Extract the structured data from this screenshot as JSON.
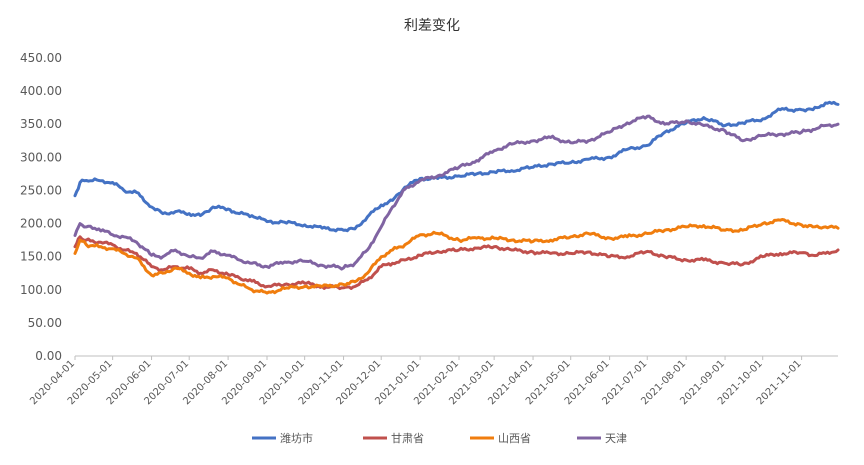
{
  "chart_data": {
    "type": "line",
    "title": "利差变化",
    "xlabel": "",
    "ylabel": "",
    "ylim": [
      0,
      450
    ],
    "yticks": [
      "0.00",
      "50.00",
      "100.00",
      "150.00",
      "200.00",
      "250.00",
      "300.00",
      "350.00",
      "400.00",
      "450.00"
    ],
    "x_range": [
      "2020-04-01",
      "2021-11-30"
    ],
    "x_ticks": [
      "2020-04-01",
      "2020-05-01",
      "2020-06-01",
      "2020-07-01",
      "2020-08-01",
      "2020-09-01",
      "2020-10-01",
      "2020-11-01",
      "2020-12-01",
      "2021-01-01",
      "2021-02-01",
      "2021-03-01",
      "2021-04-01",
      "2021-05-01",
      "2021-06-01",
      "2021-07-01",
      "2021-08-01",
      "2021-09-01",
      "2021-10-01",
      "2021-11-01"
    ],
    "grid": false,
    "legend_position": "bottom",
    "series": [
      {
        "name": "潍坊市",
        "color": "#4472C4",
        "points": [
          [
            "2020-04-01",
            242
          ],
          [
            "2020-04-05",
            262
          ],
          [
            "2020-04-10",
            265
          ],
          [
            "2020-04-20",
            265
          ],
          [
            "2020-05-01",
            262
          ],
          [
            "2020-05-10",
            250
          ],
          [
            "2020-05-20",
            247
          ],
          [
            "2020-06-01",
            225
          ],
          [
            "2020-06-10",
            215
          ],
          [
            "2020-06-20",
            218
          ],
          [
            "2020-07-01",
            215
          ],
          [
            "2020-07-10",
            212
          ],
          [
            "2020-07-20",
            225
          ],
          [
            "2020-08-01",
            222
          ],
          [
            "2020-08-10",
            215
          ],
          [
            "2020-08-20",
            212
          ],
          [
            "2020-09-01",
            203
          ],
          [
            "2020-09-15",
            202
          ],
          [
            "2020-10-01",
            198
          ],
          [
            "2020-10-15",
            193
          ],
          [
            "2020-11-01",
            190
          ],
          [
            "2020-11-10",
            192
          ],
          [
            "2020-11-20",
            210
          ],
          [
            "2020-12-01",
            228
          ],
          [
            "2020-12-10",
            235
          ],
          [
            "2020-12-20",
            255
          ],
          [
            "2021-01-01",
            268
          ],
          [
            "2021-01-15",
            268
          ],
          [
            "2021-02-01",
            272
          ],
          [
            "2021-02-15",
            275
          ],
          [
            "2021-03-01",
            278
          ],
          [
            "2021-03-15",
            280
          ],
          [
            "2021-04-01",
            285
          ],
          [
            "2021-04-15",
            290
          ],
          [
            "2021-05-01",
            292
          ],
          [
            "2021-05-15",
            297
          ],
          [
            "2021-06-01",
            300
          ],
          [
            "2021-06-15",
            312
          ],
          [
            "2021-07-01",
            318
          ],
          [
            "2021-07-15",
            338
          ],
          [
            "2021-08-01",
            352
          ],
          [
            "2021-08-15",
            360
          ],
          [
            "2021-09-01",
            348
          ],
          [
            "2021-09-15",
            352
          ],
          [
            "2021-10-01",
            358
          ],
          [
            "2021-10-15",
            372
          ],
          [
            "2021-11-01",
            372
          ],
          [
            "2021-11-10",
            372
          ],
          [
            "2021-11-20",
            382
          ],
          [
            "2021-11-30",
            380
          ]
        ]
      },
      {
        "name": "甘肃省",
        "color": "#C0504D",
        "points": [
          [
            "2020-04-01",
            165
          ],
          [
            "2020-04-05",
            180
          ],
          [
            "2020-04-10",
            175
          ],
          [
            "2020-04-20",
            172
          ],
          [
            "2020-05-01",
            168
          ],
          [
            "2020-05-10",
            160
          ],
          [
            "2020-05-20",
            155
          ],
          [
            "2020-06-01",
            135
          ],
          [
            "2020-06-10",
            130
          ],
          [
            "2020-06-20",
            135
          ],
          [
            "2020-07-01",
            132
          ],
          [
            "2020-07-10",
            125
          ],
          [
            "2020-07-20",
            130
          ],
          [
            "2020-08-01",
            123
          ],
          [
            "2020-08-10",
            118
          ],
          [
            "2020-08-20",
            113
          ],
          [
            "2020-09-01",
            105
          ],
          [
            "2020-09-15",
            108
          ],
          [
            "2020-10-01",
            110
          ],
          [
            "2020-10-15",
            105
          ],
          [
            "2020-11-01",
            103
          ],
          [
            "2020-11-10",
            105
          ],
          [
            "2020-11-20",
            115
          ],
          [
            "2020-12-01",
            135
          ],
          [
            "2020-12-10",
            140
          ],
          [
            "2020-12-20",
            145
          ],
          [
            "2021-01-01",
            152
          ],
          [
            "2021-01-15",
            158
          ],
          [
            "2021-02-01",
            160
          ],
          [
            "2021-02-15",
            163
          ],
          [
            "2021-03-01",
            165
          ],
          [
            "2021-03-15",
            160
          ],
          [
            "2021-04-01",
            157
          ],
          [
            "2021-04-15",
            155
          ],
          [
            "2021-05-01",
            155
          ],
          [
            "2021-05-15",
            157
          ],
          [
            "2021-06-01",
            150
          ],
          [
            "2021-06-15",
            150
          ],
          [
            "2021-07-01",
            158
          ],
          [
            "2021-07-15",
            150
          ],
          [
            "2021-08-01",
            145
          ],
          [
            "2021-08-15",
            145
          ],
          [
            "2021-09-01",
            140
          ],
          [
            "2021-09-15",
            138
          ],
          [
            "2021-10-01",
            150
          ],
          [
            "2021-10-15",
            155
          ],
          [
            "2021-11-01",
            156
          ],
          [
            "2021-11-10",
            152
          ],
          [
            "2021-11-20",
            155
          ],
          [
            "2021-11-30",
            160
          ]
        ]
      },
      {
        "name": "山西省",
        "color": "#F07D0E",
        "points": [
          [
            "2020-04-01",
            155
          ],
          [
            "2020-04-05",
            175
          ],
          [
            "2020-04-10",
            168
          ],
          [
            "2020-04-20",
            165
          ],
          [
            "2020-05-01",
            162
          ],
          [
            "2020-05-10",
            155
          ],
          [
            "2020-05-20",
            148
          ],
          [
            "2020-06-01",
            122
          ],
          [
            "2020-06-10",
            125
          ],
          [
            "2020-06-20",
            133
          ],
          [
            "2020-07-01",
            125
          ],
          [
            "2020-07-10",
            118
          ],
          [
            "2020-07-20",
            120
          ],
          [
            "2020-08-01",
            118
          ],
          [
            "2020-08-10",
            108
          ],
          [
            "2020-08-20",
            100
          ],
          [
            "2020-09-01",
            95
          ],
          [
            "2020-09-15",
            102
          ],
          [
            "2020-10-01",
            105
          ],
          [
            "2020-10-15",
            105
          ],
          [
            "2020-11-01",
            108
          ],
          [
            "2020-11-10",
            112
          ],
          [
            "2020-11-20",
            125
          ],
          [
            "2020-12-01",
            150
          ],
          [
            "2020-12-10",
            160
          ],
          [
            "2020-12-20",
            168
          ],
          [
            "2021-01-01",
            183
          ],
          [
            "2021-01-15",
            185
          ],
          [
            "2021-02-01",
            175
          ],
          [
            "2021-02-15",
            178
          ],
          [
            "2021-03-01",
            178
          ],
          [
            "2021-03-15",
            175
          ],
          [
            "2021-04-01",
            173
          ],
          [
            "2021-04-15",
            175
          ],
          [
            "2021-05-01",
            180
          ],
          [
            "2021-05-15",
            185
          ],
          [
            "2021-06-01",
            178
          ],
          [
            "2021-06-15",
            180
          ],
          [
            "2021-07-01",
            185
          ],
          [
            "2021-07-15",
            190
          ],
          [
            "2021-08-01",
            195
          ],
          [
            "2021-08-15",
            197
          ],
          [
            "2021-09-01",
            190
          ],
          [
            "2021-09-15",
            190
          ],
          [
            "2021-10-01",
            200
          ],
          [
            "2021-10-15",
            205
          ],
          [
            "2021-11-01",
            198
          ],
          [
            "2021-11-10",
            195
          ],
          [
            "2021-11-20",
            195
          ],
          [
            "2021-11-30",
            193
          ]
        ]
      },
      {
        "name": "天津",
        "color": "#8064A2",
        "points": [
          [
            "2020-04-01",
            182
          ],
          [
            "2020-04-05",
            200
          ],
          [
            "2020-04-10",
            195
          ],
          [
            "2020-04-20",
            192
          ],
          [
            "2020-05-01",
            183
          ],
          [
            "2020-05-10",
            180
          ],
          [
            "2020-05-20",
            172
          ],
          [
            "2020-06-01",
            152
          ],
          [
            "2020-06-10",
            150
          ],
          [
            "2020-06-20",
            160
          ],
          [
            "2020-07-01",
            150
          ],
          [
            "2020-07-10",
            148
          ],
          [
            "2020-07-20",
            158
          ],
          [
            "2020-08-01",
            152
          ],
          [
            "2020-08-10",
            145
          ],
          [
            "2020-08-20",
            140
          ],
          [
            "2020-09-01",
            135
          ],
          [
            "2020-09-15",
            142
          ],
          [
            "2020-10-01",
            143
          ],
          [
            "2020-10-15",
            137
          ],
          [
            "2020-11-01",
            133
          ],
          [
            "2020-11-10",
            140
          ],
          [
            "2020-11-20",
            160
          ],
          [
            "2020-12-01",
            195
          ],
          [
            "2020-12-10",
            225
          ],
          [
            "2020-12-20",
            252
          ],
          [
            "2021-01-01",
            265
          ],
          [
            "2021-01-15",
            272
          ],
          [
            "2021-02-01",
            285
          ],
          [
            "2021-02-15",
            295
          ],
          [
            "2021-03-01",
            310
          ],
          [
            "2021-03-15",
            320
          ],
          [
            "2021-04-01",
            325
          ],
          [
            "2021-04-15",
            330
          ],
          [
            "2021-05-01",
            322
          ],
          [
            "2021-05-15",
            325
          ],
          [
            "2021-06-01",
            338
          ],
          [
            "2021-06-15",
            352
          ],
          [
            "2021-07-01",
            362
          ],
          [
            "2021-07-15",
            350
          ],
          [
            "2021-08-01",
            355
          ],
          [
            "2021-08-15",
            348
          ],
          [
            "2021-09-01",
            340
          ],
          [
            "2021-09-15",
            325
          ],
          [
            "2021-10-01",
            333
          ],
          [
            "2021-10-15",
            335
          ],
          [
            "2021-11-01",
            338
          ],
          [
            "2021-11-10",
            342
          ],
          [
            "2021-11-20",
            348
          ],
          [
            "2021-11-30",
            350
          ]
        ]
      }
    ]
  }
}
